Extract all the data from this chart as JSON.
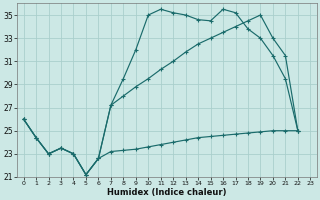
{
  "xlabel": "Humidex (Indice chaleur)",
  "bg_color": "#cce8e5",
  "grid_color": "#aacfcc",
  "line_color": "#1a6b6b",
  "xlim_min": -0.5,
  "xlim_max": 23.5,
  "ylim_min": 21,
  "ylim_max": 36,
  "xticks": [
    0,
    1,
    2,
    3,
    4,
    5,
    6,
    7,
    8,
    9,
    10,
    11,
    12,
    13,
    14,
    15,
    16,
    17,
    18,
    19,
    20,
    21,
    22,
    23
  ],
  "yticks": [
    21,
    23,
    25,
    27,
    29,
    31,
    33,
    35
  ],
  "curve_jagged_x": [
    0,
    1,
    2,
    3,
    4,
    5,
    6,
    7,
    8,
    9,
    10,
    11,
    12,
    13,
    14,
    15,
    16,
    17,
    18,
    19,
    20,
    21,
    22
  ],
  "curve_jagged_y": [
    26.0,
    24.4,
    23.0,
    23.5,
    23.0,
    21.2,
    22.6,
    27.2,
    29.5,
    32.0,
    35.0,
    35.5,
    35.2,
    35.0,
    34.6,
    34.5,
    35.5,
    35.2,
    33.8,
    33.0,
    31.5,
    29.5,
    25.0
  ],
  "curve_diag_x": [
    0,
    1,
    2,
    3,
    4,
    5,
    6,
    7,
    8,
    9,
    10,
    11,
    12,
    13,
    14,
    15,
    16,
    17,
    18,
    19,
    20,
    21,
    22
  ],
  "curve_diag_y": [
    26.0,
    24.4,
    23.0,
    23.5,
    23.0,
    21.2,
    22.6,
    27.2,
    28.0,
    28.8,
    29.5,
    30.3,
    31.0,
    31.8,
    32.5,
    33.0,
    33.5,
    34.0,
    34.5,
    35.0,
    33.0,
    31.5,
    25.0
  ],
  "curve_flat_x": [
    0,
    1,
    2,
    3,
    4,
    5,
    6,
    7,
    8,
    9,
    10,
    11,
    12,
    13,
    14,
    15,
    16,
    17,
    18,
    19,
    20,
    21,
    22
  ],
  "curve_flat_y": [
    26.0,
    24.4,
    23.0,
    23.5,
    23.0,
    21.2,
    22.6,
    23.2,
    23.3,
    23.4,
    23.6,
    23.8,
    24.0,
    24.2,
    24.4,
    24.5,
    24.6,
    24.7,
    24.8,
    24.9,
    25.0,
    25.0,
    25.0
  ]
}
